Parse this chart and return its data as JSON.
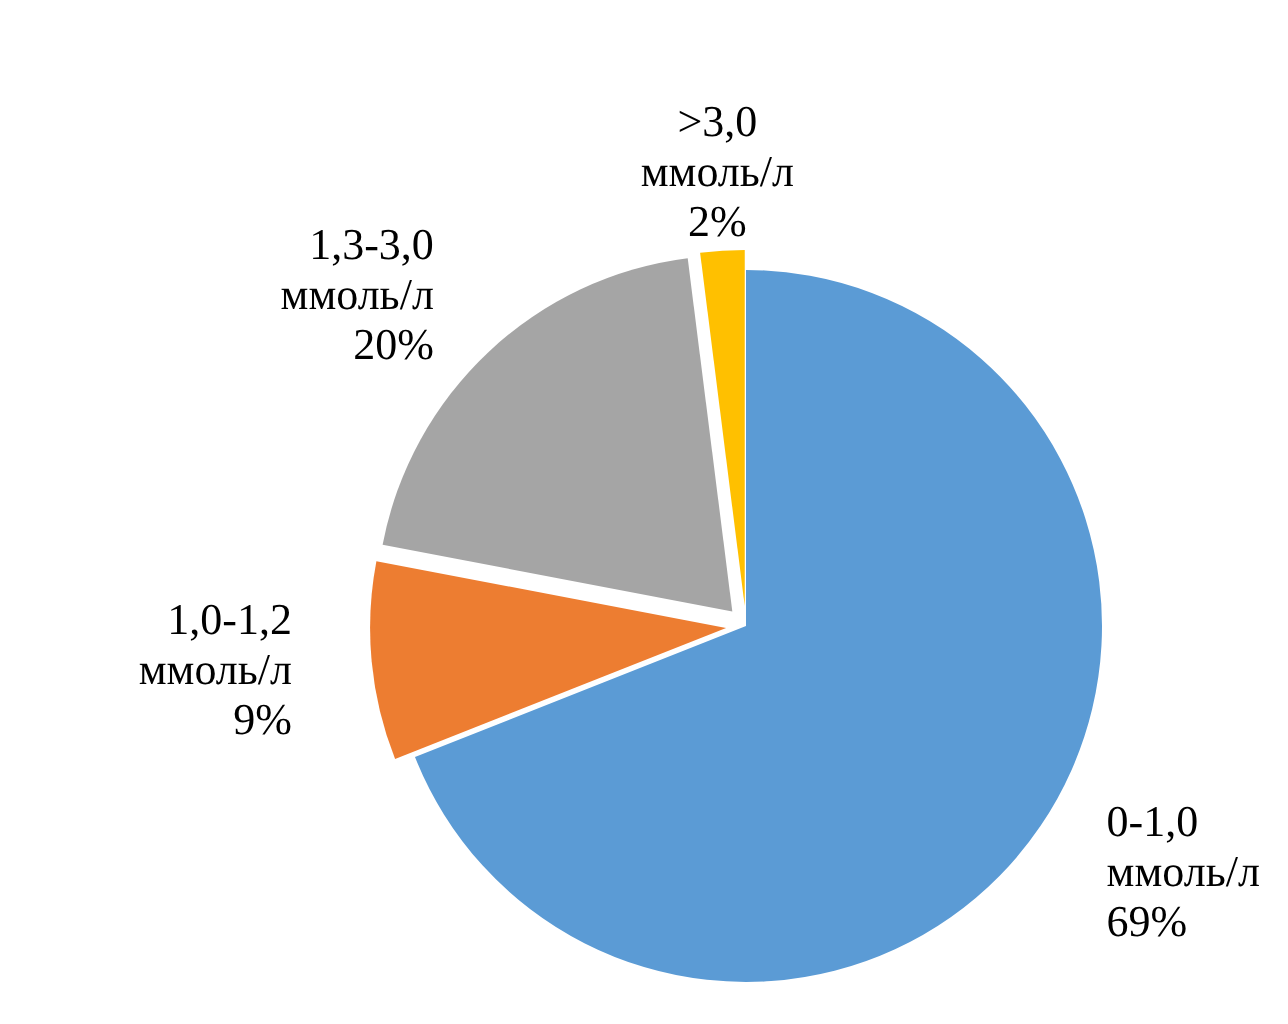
{
  "chart_data": {
    "type": "pie",
    "categories": [
      "0-1,0 ммоль/л",
      "1,0-1,2 ммоль/л",
      "1,3-3,0 ммоль/л",
      ">3,0 ммоль/л"
    ],
    "values": [
      69,
      9,
      20,
      2
    ],
    "value_labels": [
      "69%",
      "9%",
      "20%",
      "2%"
    ],
    "colors": [
      "#5b9bd5",
      "#ed7d31",
      "#a5a5a5",
      "#ffc000"
    ],
    "legend": false
  }
}
